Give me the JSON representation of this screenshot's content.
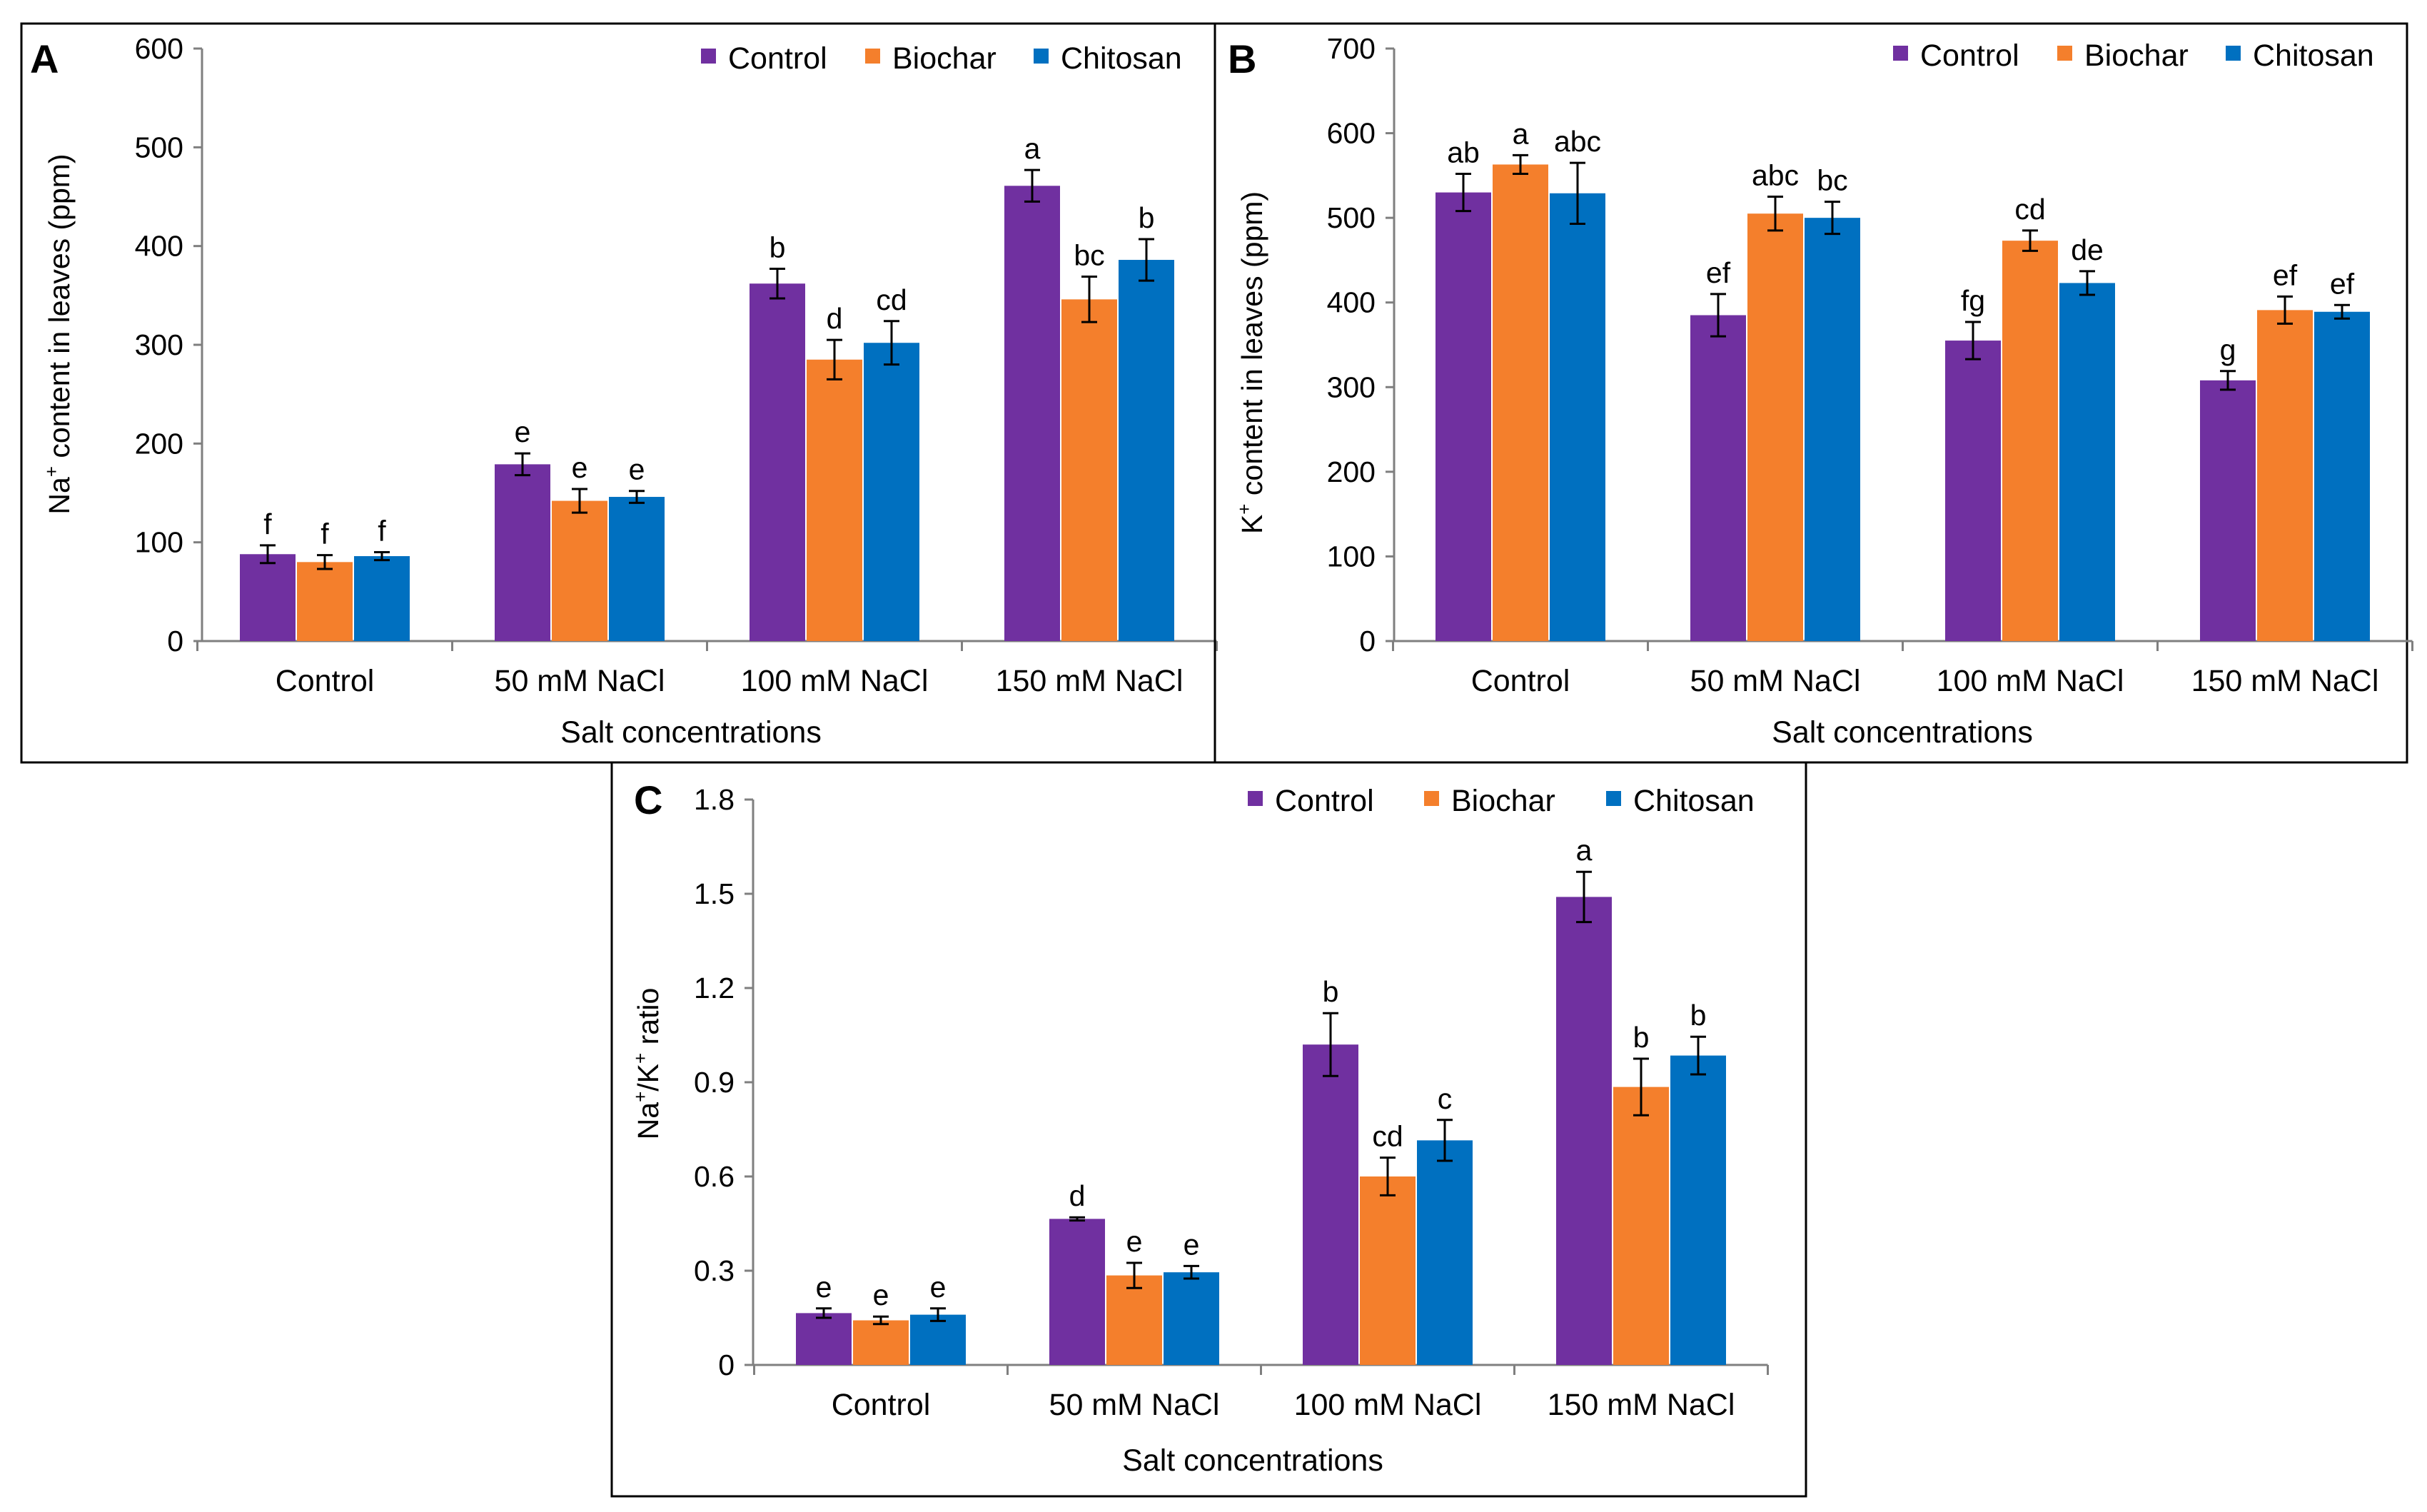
{
  "figure": {
    "x_axis_title": "Salt concentrations",
    "legend": [
      {
        "name": "Control",
        "color": "#7030a0"
      },
      {
        "name": "Biochar",
        "color": "#f47f2c"
      },
      {
        "name": "Chitosan",
        "color": "#0070c0"
      }
    ]
  },
  "chart_data": [
    {
      "panel": "A",
      "type": "bar",
      "title": "",
      "ylabel_parts": [
        "Na",
        "+",
        " content in leaves (ppm)"
      ],
      "xlabel": "Salt concentrations",
      "categories": [
        "Control",
        "50 mM NaCl",
        "100 mM NaCl",
        "150 mM NaCl"
      ],
      "ylim": [
        0,
        600
      ],
      "yticks": [
        "0",
        "100",
        "200",
        "300",
        "400",
        "500",
        "600"
      ],
      "tick_step": 100,
      "grid": false,
      "legend_position": "top-right",
      "series": [
        {
          "name": "Control",
          "values": [
            88,
            179,
            362,
            461
          ],
          "errors": [
            9,
            11,
            15,
            16
          ],
          "letters": [
            "f",
            "e",
            "b",
            "a"
          ]
        },
        {
          "name": "Biochar",
          "values": [
            80,
            142,
            285,
            346
          ],
          "errors": [
            7,
            12,
            20,
            23
          ],
          "letters": [
            "f",
            "e",
            "d",
            "bc"
          ]
        },
        {
          "name": "Chitosan",
          "values": [
            86,
            146,
            302,
            386
          ],
          "errors": [
            4,
            6,
            22,
            21
          ],
          "letters": [
            "f",
            "e",
            "cd",
            "b"
          ]
        }
      ]
    },
    {
      "panel": "B",
      "type": "bar",
      "title": "",
      "ylabel_parts": [
        "K",
        "+",
        " content in leaves (ppm)"
      ],
      "xlabel": "Salt concentrations",
      "categories": [
        "Control",
        "50 mM NaCl",
        "100 mM NaCl",
        "150 mM NaCl"
      ],
      "ylim": [
        0,
        700
      ],
      "yticks": [
        "0",
        "100",
        "200",
        "300",
        "400",
        "500",
        "600",
        "700"
      ],
      "tick_step": 100,
      "grid": false,
      "legend_position": "top-right",
      "series": [
        {
          "name": "Control",
          "values": [
            530,
            385,
            355,
            308
          ],
          "errors": [
            22,
            25,
            22,
            11
          ],
          "letters": [
            "ab",
            "ef",
            "fg",
            "g"
          ]
        },
        {
          "name": "Biochar",
          "values": [
            563,
            505,
            473,
            391
          ],
          "errors": [
            11,
            20,
            12,
            16
          ],
          "letters": [
            "a",
            "abc",
            "cd",
            "ef"
          ]
        },
        {
          "name": "Chitosan",
          "values": [
            529,
            500,
            423,
            389
          ],
          "errors": [
            36,
            19,
            14,
            8
          ],
          "letters": [
            "abc",
            "bc",
            "de",
            "ef"
          ]
        }
      ]
    },
    {
      "panel": "C",
      "type": "bar",
      "title": "",
      "ylabel_parts": [
        "Na",
        "+",
        "/K",
        "+",
        " ratio"
      ],
      "xlabel": "Salt concentrations",
      "categories": [
        "Control",
        "50 mM NaCl",
        "100 mM NaCl",
        "150 mM NaCl"
      ],
      "ylim": [
        0,
        1.8
      ],
      "yticks": [
        "0",
        "0.3",
        "0.6",
        "0.9",
        "1.2",
        "1.5",
        "1.8"
      ],
      "tick_step": 0.3,
      "grid": false,
      "legend_position": "top-right",
      "series": [
        {
          "name": "Control",
          "values": [
            0.165,
            0.465,
            1.02,
            1.49
          ],
          "errors": [
            0.015,
            0.005,
            0.1,
            0.08
          ],
          "letters": [
            "e",
            "d",
            "b",
            "a"
          ]
        },
        {
          "name": "Biochar",
          "values": [
            0.142,
            0.285,
            0.6,
            0.885
          ],
          "errors": [
            0.012,
            0.04,
            0.06,
            0.09
          ],
          "letters": [
            "e",
            "e",
            "cd",
            "b"
          ]
        },
        {
          "name": "Chitosan",
          "values": [
            0.16,
            0.295,
            0.715,
            0.985
          ],
          "errors": [
            0.02,
            0.02,
            0.065,
            0.06
          ],
          "letters": [
            "e",
            "e",
            "c",
            "b"
          ]
        }
      ]
    }
  ]
}
